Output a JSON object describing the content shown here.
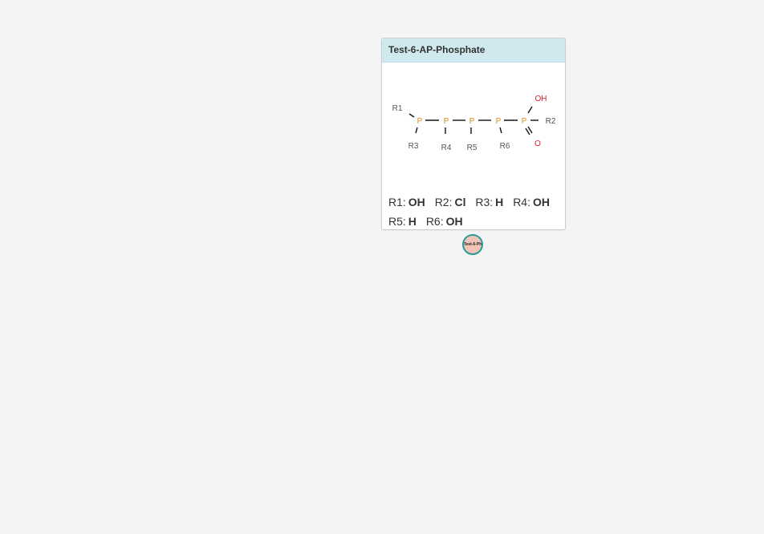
{
  "card": {
    "title": "Test-6-AP-Phosphate",
    "atoms": {
      "p1": "P",
      "p2": "P",
      "p3": "P",
      "p4": "P",
      "p5": "P",
      "oh": "OH",
      "o": "O",
      "r1": "R1",
      "r2": "R2",
      "r3": "R3",
      "r4": "R4",
      "r5": "R5",
      "r6": "R6"
    },
    "rgroups": [
      {
        "key": "R1:",
        "value": "OH"
      },
      {
        "key": "R2:",
        "value": "Cl"
      },
      {
        "key": "R3:",
        "value": "H"
      },
      {
        "key": "R4:",
        "value": "OH"
      },
      {
        "key": "R5:",
        "value": "H"
      },
      {
        "key": "R6:",
        "value": "OH"
      }
    ]
  },
  "node": {
    "label": "Test-6-Ph"
  },
  "colors": {
    "phosphorus": "#e08a1e",
    "oxygen": "#d8212a",
    "header": "#cfe9ee",
    "node_fill": "#f2c4b8",
    "node_border": "#2a9c98"
  }
}
